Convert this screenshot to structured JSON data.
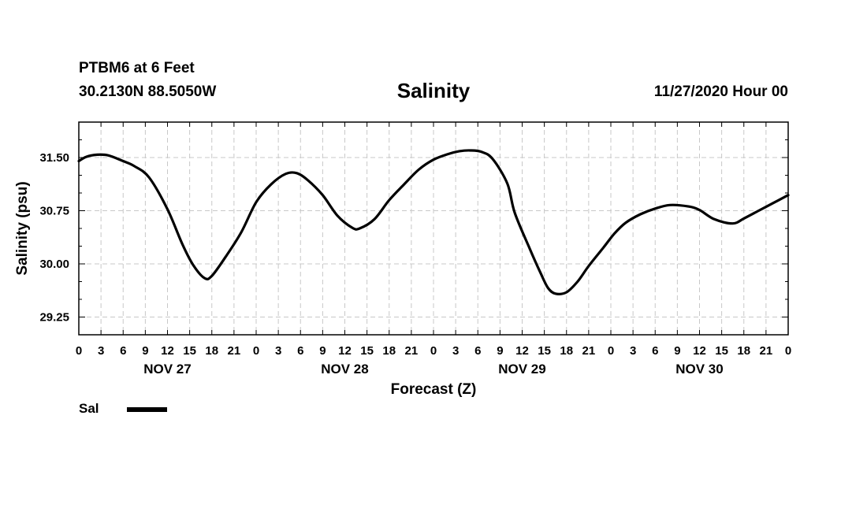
{
  "header": {
    "station": "PTBM6 at 6 Feet",
    "coords": "30.2130N 88.5050W",
    "title": "Salinity",
    "datetime": "11/27/2020 Hour 00"
  },
  "legend": {
    "label": "Sal",
    "color": "#000000"
  },
  "chart_data": {
    "type": "line",
    "title": "Salinity",
    "xlabel": "Forecast (Z)",
    "ylabel": "Salinity (psu)",
    "xlim": [
      0,
      96
    ],
    "ylim": [
      29.0,
      32.0
    ],
    "yticks": [
      29.25,
      30.0,
      30.75,
      31.5
    ],
    "ytick_labels": [
      "29.25",
      "30.00",
      "30.75",
      "31.50"
    ],
    "xticks": [
      0,
      3,
      6,
      9,
      12,
      15,
      18,
      21,
      24,
      27,
      30,
      33,
      36,
      39,
      42,
      45,
      48,
      51,
      54,
      57,
      60,
      63,
      66,
      69,
      72,
      75,
      78,
      81,
      84,
      87,
      90,
      93,
      96
    ],
    "xtick_labels": [
      "0",
      "3",
      "6",
      "9",
      "12",
      "15",
      "18",
      "21",
      "0",
      "3",
      "6",
      "9",
      "12",
      "15",
      "18",
      "21",
      "0",
      "3",
      "6",
      "9",
      "12",
      "15",
      "18",
      "21",
      "0",
      "3",
      "6",
      "9",
      "12",
      "15",
      "18",
      "21",
      "0"
    ],
    "day_labels": [
      {
        "label": "NOV 27",
        "x": 12
      },
      {
        "label": "NOV 28",
        "x": 36
      },
      {
        "label": "NOV 29",
        "x": 60
      },
      {
        "label": "NOV 30",
        "x": 84
      }
    ],
    "grid": true,
    "series": [
      {
        "name": "Sal",
        "color": "#000000",
        "x": [
          0,
          1,
          2.5,
          4,
          6,
          7.5,
          9.5,
          12,
          14,
          15.5,
          17,
          18,
          20,
          22,
          24,
          26,
          28,
          29.5,
          31,
          33,
          35,
          37,
          38,
          40,
          42,
          44,
          46,
          48,
          50,
          51.5,
          53,
          54.5,
          56,
          58,
          59,
          61,
          62.5,
          63.5,
          64.5,
          66,
          67.5,
          69,
          71,
          72.5,
          74,
          76,
          78,
          80,
          82.5,
          84,
          86,
          88.5,
          90,
          92,
          94,
          96
        ],
        "values": [
          31.45,
          31.51,
          31.54,
          31.53,
          31.45,
          31.38,
          31.22,
          30.77,
          30.28,
          29.98,
          29.8,
          29.83,
          30.12,
          30.45,
          30.87,
          31.12,
          31.27,
          31.28,
          31.18,
          30.97,
          30.68,
          30.51,
          30.5,
          30.63,
          30.9,
          31.12,
          31.33,
          31.47,
          31.55,
          31.59,
          31.6,
          31.58,
          31.48,
          31.13,
          30.72,
          30.22,
          29.87,
          29.66,
          29.58,
          29.6,
          29.75,
          29.97,
          30.23,
          30.43,
          30.58,
          30.7,
          30.78,
          30.83,
          30.81,
          30.76,
          30.63,
          30.57,
          30.64,
          30.75,
          30.86,
          30.97
        ]
      }
    ]
  }
}
